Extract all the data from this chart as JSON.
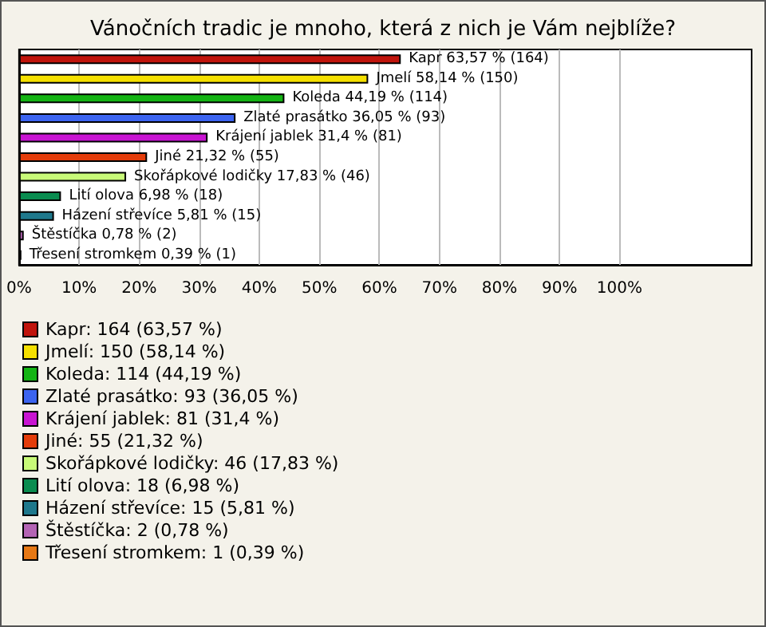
{
  "chart_data": {
    "type": "bar",
    "orientation": "horizontal",
    "stacked": true,
    "title": "Vánočních tradic je mnoho, která z nich je Vám nejblíže?",
    "categories": [
      null,
      null,
      null,
      null,
      null,
      null,
      null,
      null,
      null,
      null,
      null
    ],
    "series": [
      {
        "name": "Kapr: 164 (63,57 %)",
        "color": "#c0140c",
        "values": [
          63.57,
          null,
          null,
          null,
          null,
          null,
          null,
          null,
          null,
          null,
          null
        ],
        "value_labels": [
          "Kapr 63,57 % (164)",
          null,
          null,
          null,
          null,
          null,
          null,
          null,
          null,
          null,
          null
        ]
      },
      {
        "name": "Jmelí: 150 (58,14 %)",
        "color": "#f5e000",
        "values": [
          null,
          58.14,
          null,
          null,
          null,
          null,
          null,
          null,
          null,
          null,
          null
        ],
        "value_labels": [
          null,
          "Jmelí 58,14 % (150)",
          null,
          null,
          null,
          null,
          null,
          null,
          null,
          null,
          null
        ]
      },
      {
        "name": "Koleda: 114 (44,19 %)",
        "color": "#14b414",
        "values": [
          null,
          null,
          44.19,
          null,
          null,
          null,
          null,
          null,
          null,
          null,
          null
        ],
        "value_labels": [
          null,
          null,
          "Koleda 44,19 % (114)",
          null,
          null,
          null,
          null,
          null,
          null,
          null,
          null
        ]
      },
      {
        "name": "Zlaté prasátko: 93 (36,05 %)",
        "color": "#3c64f0",
        "values": [
          null,
          null,
          null,
          36.05,
          null,
          null,
          null,
          null,
          null,
          null,
          null
        ],
        "value_labels": [
          null,
          null,
          null,
          "Zlaté prasátko 36,05 % (93)",
          null,
          null,
          null,
          null,
          null,
          null,
          null
        ]
      },
      {
        "name": "Krájení jablek: 81 (31,4 %)",
        "color": "#c814d2",
        "values": [
          null,
          null,
          null,
          null,
          31.4,
          null,
          null,
          null,
          null,
          null,
          null
        ],
        "value_labels": [
          null,
          null,
          null,
          null,
          "Krájení jablek 31,4 % (81)",
          null,
          null,
          null,
          null,
          null,
          null
        ]
      },
      {
        "name": "Jiné: 55 (21,32 %)",
        "color": "#e43c0a",
        "values": [
          null,
          null,
          null,
          null,
          null,
          21.32,
          null,
          null,
          null,
          null,
          null
        ],
        "value_labels": [
          null,
          null,
          null,
          null,
          null,
          "Jiné 21,32 % (55)",
          null,
          null,
          null,
          null,
          null
        ]
      },
      {
        "name": "Skořápkové lodičky: 46 (17,83 %)",
        "color": "#c8fa78",
        "values": [
          null,
          null,
          null,
          null,
          null,
          null,
          17.83,
          null,
          null,
          null,
          null
        ],
        "value_labels": [
          null,
          null,
          null,
          null,
          null,
          null,
          "Skořápkové lodičky 17,83 % (46)",
          null,
          null,
          null,
          null
        ]
      },
      {
        "name": "Lití olova: 18 (6,98 %)",
        "color": "#0a8c50",
        "values": [
          null,
          null,
          null,
          null,
          null,
          null,
          null,
          6.98,
          null,
          null,
          null
        ],
        "value_labels": [
          null,
          null,
          null,
          null,
          null,
          null,
          null,
          "Lití olova 6,98 % (18)",
          null,
          null,
          null
        ]
      },
      {
        "name": "Házení střevíce: 15 (5,81 %)",
        "color": "#1e788c",
        "values": [
          null,
          null,
          null,
          null,
          null,
          null,
          null,
          null,
          5.81,
          null,
          null
        ],
        "value_labels": [
          null,
          null,
          null,
          null,
          null,
          null,
          null,
          null,
          "Házení střevíce 5,81 % (15)",
          null,
          null
        ]
      },
      {
        "name": "Štěstíčka: 2 (0,78 %)",
        "color": "#b464b4",
        "values": [
          null,
          null,
          null,
          null,
          null,
          null,
          null,
          null,
          null,
          0.78,
          null
        ],
        "value_labels": [
          null,
          null,
          null,
          null,
          null,
          null,
          null,
          null,
          null,
          "Štěstíčka 0,78 % (2)",
          null
        ]
      },
      {
        "name": "Třesení stromkem: 1 (0,39 %)",
        "color": "#e67814",
        "values": [
          null,
          null,
          null,
          null,
          null,
          null,
          null,
          null,
          null,
          null,
          0.39
        ],
        "value_labels": [
          null,
          null,
          null,
          null,
          null,
          null,
          null,
          null,
          null,
          null,
          "Třesení stromkem 0,39 % (1)"
        ]
      }
    ],
    "xlim": [
      0,
      122
    ],
    "xticks": [
      {
        "value": 0,
        "label": "0%"
      },
      {
        "value": 10,
        "label": "10%"
      },
      {
        "value": 20,
        "label": "20%"
      },
      {
        "value": 30,
        "label": "30%"
      },
      {
        "value": 40,
        "label": "40%"
      },
      {
        "value": 50,
        "label": "50%"
      },
      {
        "value": 60,
        "label": "60%"
      },
      {
        "value": 70,
        "label": "70%"
      },
      {
        "value": 80,
        "label": "80%"
      },
      {
        "value": 90,
        "label": "90%"
      },
      {
        "value": 100,
        "label": "100%"
      }
    ],
    "grid": "x",
    "legend": "bottom left"
  }
}
